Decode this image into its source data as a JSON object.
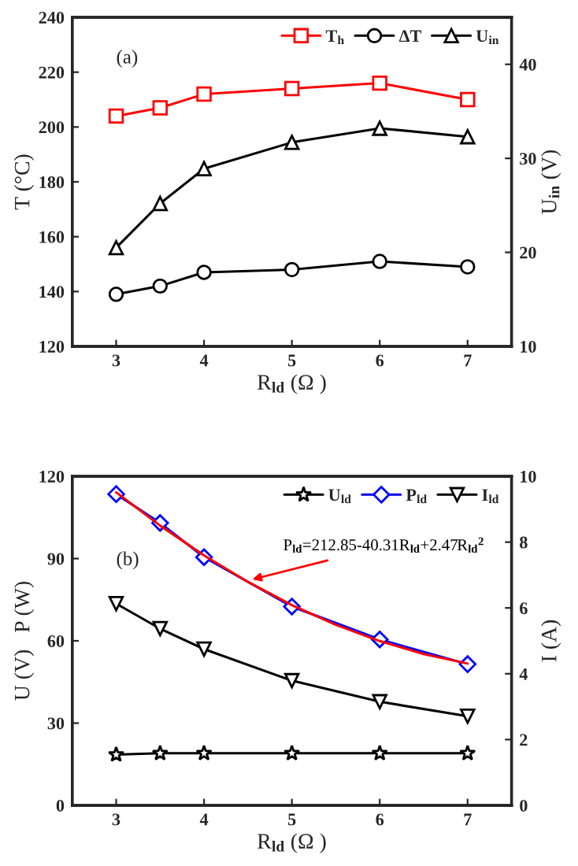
{
  "chart_data": [
    {
      "type": "line",
      "xlabel": "R$_{ld}$ (Ω )",
      "ylabel": "T (°C)",
      "y2label": "U$_{in}$ (V)",
      "annotations": [
        "(a)"
      ],
      "x": [
        3,
        3.5,
        4,
        5,
        6,
        7
      ],
      "xlim": [
        2.5,
        7.5
      ],
      "xticks": [
        3,
        4,
        5,
        6,
        7
      ],
      "ylim": [
        120,
        240
      ],
      "yticks": [
        120,
        140,
        160,
        180,
        200,
        220,
        240
      ],
      "y2lim": [
        10,
        45
      ],
      "y2ticks": [
        10,
        20,
        30,
        40
      ],
      "legend": "top right",
      "grid": false,
      "series": [
        {
          "name": "T$_{h}$",
          "color": "#ff0000",
          "marker": "square",
          "values": [
            204,
            207,
            212,
            214,
            216,
            210
          ]
        },
        {
          "name": "ΔT",
          "color": "#000000",
          "marker": "circle",
          "values": [
            139,
            142,
            147,
            148,
            151,
            149
          ]
        },
        {
          "name": "U$_{in}$",
          "color": "#000000",
          "marker": "triangle",
          "axis": "y2",
          "values": [
            20.5,
            25.2,
            28.9,
            31.7,
            33.2,
            32.3
          ]
        }
      ]
    },
    {
      "type": "line",
      "xlabel": "R$_{ld}$ (Ω )",
      "ylabel": "U (V)   P (W)",
      "y2label": "I (A)",
      "annotations": [
        "(b)",
        {
          "text": "P$_{ld}$=212.85-40.31R$_{ld}$+2.47R$_{ld}$$^{2}$",
          "x": 4.5,
          "y": 82
        }
      ],
      "x": [
        3,
        3.5,
        4,
        5,
        6,
        7
      ],
      "xlim": [
        2.5,
        7.5
      ],
      "xticks": [
        3,
        4,
        5,
        6,
        7
      ],
      "ylim": [
        0,
        120
      ],
      "yticks": [
        0,
        30,
        60,
        90,
        120
      ],
      "y2lim": [
        0,
        10
      ],
      "y2ticks": [
        0,
        2,
        4,
        6,
        8,
        10
      ],
      "legend": "top right",
      "grid": false,
      "series": [
        {
          "name": "U$_{ld}$",
          "color": "#000000",
          "marker": "star",
          "values": [
            18.5,
            19,
            19,
            19,
            19,
            19
          ]
        },
        {
          "name": "P$_{ld}$",
          "color": "#0000ff",
          "marker": "diamond",
          "values": [
            113.5,
            103,
            90.5,
            72.5,
            60.5,
            51.5
          ]
        },
        {
          "name": "I$_{ld}$",
          "color": "#000000",
          "marker": "triangle_down",
          "axis": "y2",
          "values": [
            6.13,
            5.37,
            4.75,
            3.79,
            3.15,
            2.71
          ]
        },
        {
          "color": "#ff0000",
          "marker": "none",
          "x": [
            3,
            3.5,
            4,
            4.5,
            5,
            5.5,
            6,
            6.5,
            7
          ],
          "values": [
            114.15,
            102.02,
            91.13,
            81.47,
            73.05,
            65.86,
            59.91,
            55.19,
            51.71
          ]
        }
      ]
    }
  ]
}
